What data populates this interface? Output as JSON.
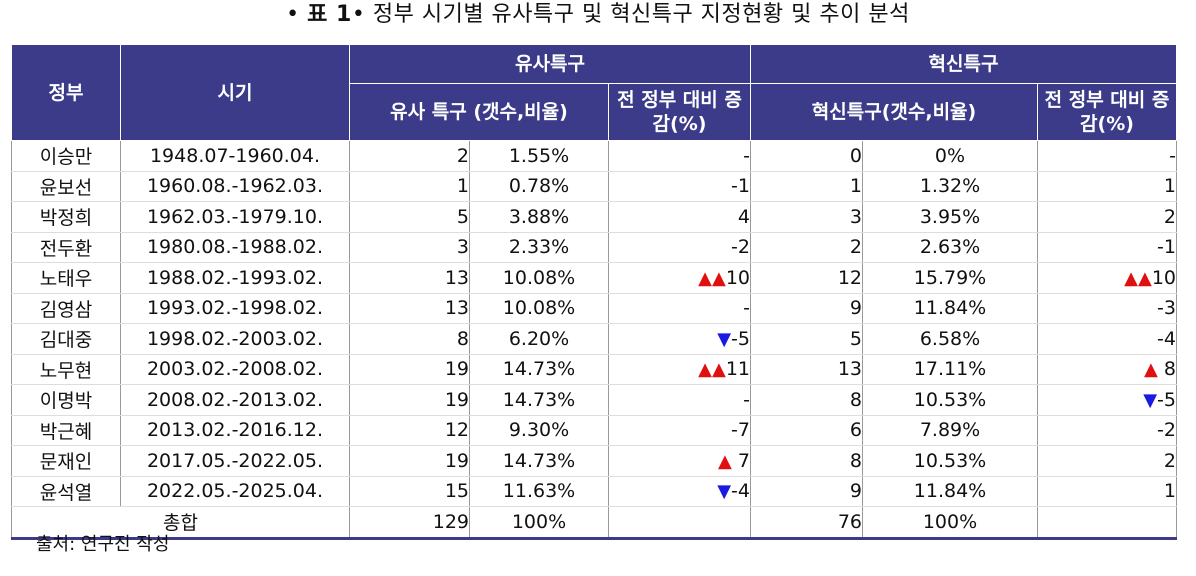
{
  "title": {
    "bullet_left": "•",
    "bold": "표 1",
    "bullet_right": "•",
    "text": "정부 시기별 유사특구 및 혁신특구 지정현황 및 추이 분석"
  },
  "headers": {
    "gov": "정부",
    "period": "시기",
    "group1": "유사특구",
    "group2": "혁신특구",
    "g1_count": "유사 특구 (갯수,비율)",
    "g1_change": "전 정부 대비 증감(%)",
    "g2_count": "혁신특구(갯수,비율)",
    "g2_change": "전 정부 대비 증감(%)"
  },
  "rows": [
    {
      "gov": "이승만",
      "period": "1948.07-1960.04.",
      "g1n": "2",
      "g1p": "1.55%",
      "g1c": "-",
      "g1i": "",
      "g2n": "0",
      "g2p": "0%",
      "g2c": "-",
      "g2i": ""
    },
    {
      "gov": "윤보선",
      "period": "1960.08.-1962.03.",
      "g1n": "1",
      "g1p": "0.78%",
      "g1c": "-1",
      "g1i": "",
      "g2n": "1",
      "g2p": "1.32%",
      "g2c": "1",
      "g2i": ""
    },
    {
      "gov": "박정희",
      "period": "1962.03.-1979.10.",
      "g1n": "5",
      "g1p": "3.88%",
      "g1c": "4",
      "g1i": "",
      "g2n": "3",
      "g2p": "3.95%",
      "g2c": "2",
      "g2i": ""
    },
    {
      "gov": "전두환",
      "period": "1980.08.-1988.02.",
      "g1n": "3",
      "g1p": "2.33%",
      "g1c": "-2",
      "g1i": "",
      "g2n": "2",
      "g2p": "2.63%",
      "g2c": "-1",
      "g2i": ""
    },
    {
      "gov": "노태우",
      "period": "1988.02.-1993.02.",
      "g1n": "13",
      "g1p": "10.08%",
      "g1c": "10",
      "g1i": "▲▲",
      "g2n": "12",
      "g2p": "15.79%",
      "g2c": "10",
      "g2i": "▲▲"
    },
    {
      "gov": "김영삼",
      "period": "1993.02.-1998.02.",
      "g1n": "13",
      "g1p": "10.08%",
      "g1c": "-",
      "g1i": "",
      "g2n": "9",
      "g2p": "11.84%",
      "g2c": "-3",
      "g2i": ""
    },
    {
      "gov": "김대중",
      "period": "1998.02.-2003.02.",
      "g1n": "8",
      "g1p": "6.20%",
      "g1c": "-5",
      "g1i": "▼",
      "g2n": "5",
      "g2p": "6.58%",
      "g2c": "-4",
      "g2i": ""
    },
    {
      "gov": "노무현",
      "period": "2003.02.-2008.02.",
      "g1n": "19",
      "g1p": "14.73%",
      "g1c": "11",
      "g1i": "▲▲",
      "g2n": "13",
      "g2p": "17.11%",
      "g2c": " 8",
      "g2i": "▲"
    },
    {
      "gov": "이명박",
      "period": "2008.02.-2013.02.",
      "g1n": "19",
      "g1p": "14.73%",
      "g1c": "-",
      "g1i": "",
      "g2n": "8",
      "g2p": "10.53%",
      "g2c": "-5",
      "g2i": "▼"
    },
    {
      "gov": "박근혜",
      "period": "2013.02.-2016.12.",
      "g1n": "12",
      "g1p": "9.30%",
      "g1c": "-7",
      "g1i": "",
      "g2n": "6",
      "g2p": "7.89%",
      "g2c": "-2",
      "g2i": ""
    },
    {
      "gov": "문재인",
      "period": "2017.05.-2022.05.",
      "g1n": "19",
      "g1p": "14.73%",
      "g1c": " 7",
      "g1i": "▲",
      "g2n": "8",
      "g2p": "10.53%",
      "g2c": "2",
      "g2i": ""
    },
    {
      "gov": "윤석열",
      "period": "2022.05.-2025.04.",
      "g1n": "15",
      "g1p": "11.63%",
      "g1c": "-4",
      "g1i": "▼",
      "g2n": "9",
      "g2p": "11.84%",
      "g2c": "1",
      "g2i": ""
    }
  ],
  "total": {
    "label": "총합",
    "g1n": "129",
    "g1p": "100%",
    "g2n": "76",
    "g2p": "100%"
  },
  "source": "출처: 연구진 작성",
  "colors": {
    "header_bg": "#3b3b8a",
    "up": "#e01010",
    "down": "#1a1ae0"
  }
}
